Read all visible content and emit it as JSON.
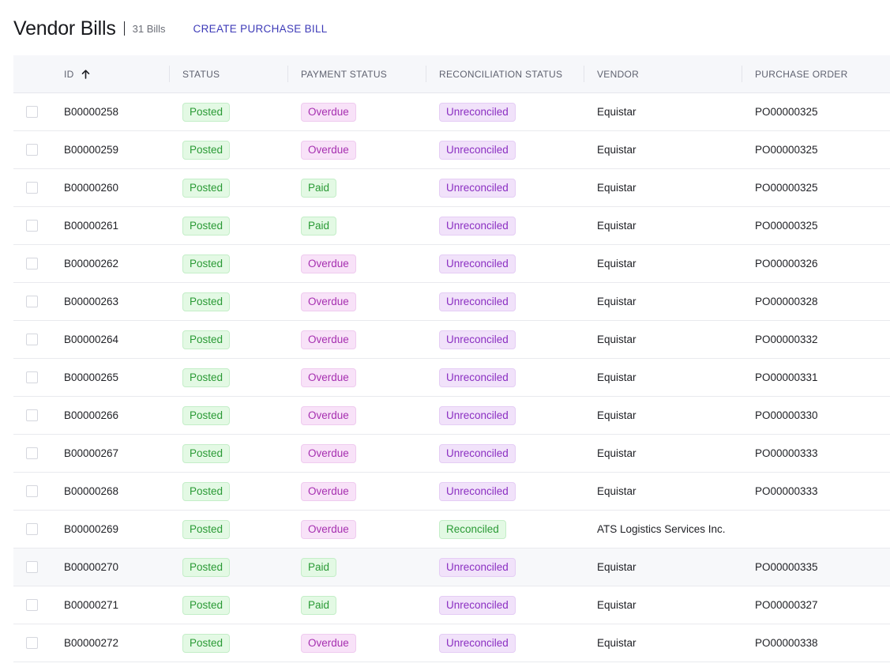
{
  "header": {
    "title": "Vendor Bills",
    "count": "31 Bills",
    "create_label": "CREATE PURCHASE BILL"
  },
  "columns": [
    "ID",
    "STATUS",
    "PAYMENT STATUS",
    "RECONCILIATION STATUS",
    "VENDOR",
    "PURCHASE ORDER"
  ],
  "sort": {
    "column": "ID",
    "direction": "ascending",
    "icon": "arrow-up-icon"
  },
  "colors": {
    "accent": "#3e3bb8",
    "posted_green": "#2a9a35",
    "overdue_purple": "#a62fb0",
    "unreconciled_lavender": "#8b2fc2"
  },
  "rows": [
    {
      "id": "B00000258",
      "status": "Posted",
      "payment": "Overdue",
      "reconciliation": "Unreconciled",
      "vendor": "Equistar",
      "po": "PO00000325"
    },
    {
      "id": "B00000259",
      "status": "Posted",
      "payment": "Overdue",
      "reconciliation": "Unreconciled",
      "vendor": "Equistar",
      "po": "PO00000325"
    },
    {
      "id": "B00000260",
      "status": "Posted",
      "payment": "Paid",
      "reconciliation": "Unreconciled",
      "vendor": "Equistar",
      "po": "PO00000325"
    },
    {
      "id": "B00000261",
      "status": "Posted",
      "payment": "Paid",
      "reconciliation": "Unreconciled",
      "vendor": "Equistar",
      "po": "PO00000325"
    },
    {
      "id": "B00000262",
      "status": "Posted",
      "payment": "Overdue",
      "reconciliation": "Unreconciled",
      "vendor": "Equistar",
      "po": "PO00000326"
    },
    {
      "id": "B00000263",
      "status": "Posted",
      "payment": "Overdue",
      "reconciliation": "Unreconciled",
      "vendor": "Equistar",
      "po": "PO00000328"
    },
    {
      "id": "B00000264",
      "status": "Posted",
      "payment": "Overdue",
      "reconciliation": "Unreconciled",
      "vendor": "Equistar",
      "po": "PO00000332"
    },
    {
      "id": "B00000265",
      "status": "Posted",
      "payment": "Overdue",
      "reconciliation": "Unreconciled",
      "vendor": "Equistar",
      "po": "PO00000331"
    },
    {
      "id": "B00000266",
      "status": "Posted",
      "payment": "Overdue",
      "reconciliation": "Unreconciled",
      "vendor": "Equistar",
      "po": "PO00000330"
    },
    {
      "id": "B00000267",
      "status": "Posted",
      "payment": "Overdue",
      "reconciliation": "Unreconciled",
      "vendor": "Equistar",
      "po": "PO00000333"
    },
    {
      "id": "B00000268",
      "status": "Posted",
      "payment": "Overdue",
      "reconciliation": "Unreconciled",
      "vendor": "Equistar",
      "po": "PO00000333"
    },
    {
      "id": "B00000269",
      "status": "Posted",
      "payment": "Overdue",
      "reconciliation": "Reconciled",
      "vendor": "ATS Logistics Services Inc.",
      "po": ""
    },
    {
      "id": "B00000270",
      "status": "Posted",
      "payment": "Paid",
      "reconciliation": "Unreconciled",
      "vendor": "Equistar",
      "po": "PO00000335"
    },
    {
      "id": "B00000271",
      "status": "Posted",
      "payment": "Paid",
      "reconciliation": "Unreconciled",
      "vendor": "Equistar",
      "po": "PO00000327"
    },
    {
      "id": "B00000272",
      "status": "Posted",
      "payment": "Overdue",
      "reconciliation": "Unreconciled",
      "vendor": "Equistar",
      "po": "PO00000338"
    }
  ]
}
